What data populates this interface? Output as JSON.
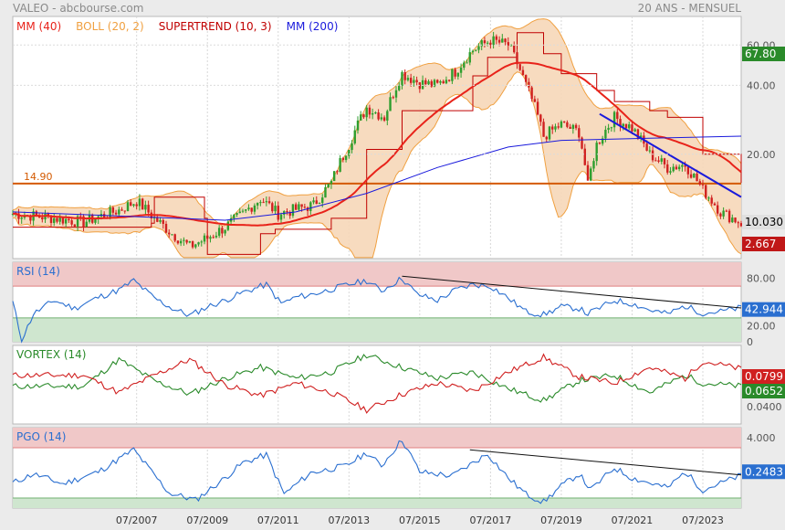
{
  "header": {
    "left": "VALEO - abcbourse.com",
    "right": "20 ANS - MENSUEL"
  },
  "colors": {
    "mm40": "#e8231a",
    "boll": "#f0a040",
    "boll_fill": "#f6d7b8",
    "supertrend": "#c00000",
    "mm200": "#1a1adc",
    "candle_up": "#2e9e2e",
    "candle_down": "#d02020",
    "price_badge": "#2a8a2a",
    "support": "#d45a00",
    "rsi_line": "#2a6fd0",
    "vortex_plus": "#2a8a2a",
    "vortex_minus": "#d02020",
    "overbought_zone": "#f0c8c8",
    "oversold_zone": "#cfe6cf"
  },
  "chart_data": [
    {
      "type": "candlestick",
      "panel": "price",
      "legend": [
        {
          "name": "MM (40)",
          "color": "#e8231a"
        },
        {
          "name": "BOLL (20, 2)",
          "color": "#f0a040"
        },
        {
          "name": "SUPERTREND (10, 3)",
          "color": "#c00000"
        },
        {
          "name": "MM (200)",
          "color": "#1a1adc"
        }
      ],
      "y_ticks": [
        "60.00",
        "40.00",
        "20.00"
      ],
      "x_ticks": [
        "07/2007",
        "07/2009",
        "07/2011",
        "07/2013",
        "07/2015",
        "07/2017",
        "07/2019",
        "07/2021",
        "07/2023"
      ],
      "x_range": [
        "2004-01",
        "2024-08"
      ],
      "yscale": "log",
      "ylim": [
        7,
        80
      ],
      "close_points": [
        [
          "2004-01",
          11.0
        ],
        [
          "2005-01",
          10.6
        ],
        [
          "2006-01",
          10.1
        ],
        [
          "2007-01",
          11.4
        ],
        [
          "2007-07",
          12.5
        ],
        [
          "2008-01",
          10.5
        ],
        [
          "2008-07",
          9.0
        ],
        [
          "2009-01",
          7.9
        ],
        [
          "2009-07",
          8.6
        ],
        [
          "2010-01",
          9.6
        ],
        [
          "2010-07",
          11.0
        ],
        [
          "2011-01",
          12.8
        ],
        [
          "2011-07",
          11.0
        ],
        [
          "2012-01",
          11.5
        ],
        [
          "2012-07",
          12.0
        ],
        [
          "2013-01",
          15.0
        ],
        [
          "2013-07",
          22.0
        ],
        [
          "2014-01",
          32.0
        ],
        [
          "2014-07",
          29.0
        ],
        [
          "2015-01",
          45.0
        ],
        [
          "2015-07",
          41.0
        ],
        [
          "2016-01",
          40.0
        ],
        [
          "2016-07",
          46.0
        ],
        [
          "2017-01",
          57.0
        ],
        [
          "2017-07",
          63.0
        ],
        [
          "2018-01",
          60.0
        ],
        [
          "2018-07",
          40.0
        ],
        [
          "2019-01",
          24.0
        ],
        [
          "2019-07",
          27.0
        ],
        [
          "2020-01",
          25.0
        ],
        [
          "2020-04",
          14.5
        ],
        [
          "2020-07",
          22.0
        ],
        [
          "2021-01",
          29.0
        ],
        [
          "2021-07",
          26.0
        ],
        [
          "2022-01",
          20.0
        ],
        [
          "2022-07",
          17.5
        ],
        [
          "2023-01",
          18.0
        ],
        [
          "2023-07",
          14.0
        ],
        [
          "2024-01",
          11.2
        ],
        [
          "2024-08",
          10.03
        ]
      ],
      "mm200": [
        [
          "2004-01",
          11.2
        ],
        [
          "2008-01",
          10.6
        ],
        [
          "2010-01",
          10.3
        ],
        [
          "2012-01",
          11.2
        ],
        [
          "2014-01",
          13.5
        ],
        [
          "2016-01",
          17.5
        ],
        [
          "2018-01",
          21.5
        ],
        [
          "2019-07",
          23.0
        ],
        [
          "2022-01",
          23.5
        ],
        [
          "2024-08",
          24.0
        ]
      ],
      "supertrend": [
        [
          "2004-01",
          9.6
        ],
        [
          "2007-12",
          10.0
        ],
        [
          "2008-01",
          13.0
        ],
        [
          "2009-06",
          10.5
        ],
        [
          "2009-07",
          7.3
        ],
        [
          "2011-01",
          9.0
        ],
        [
          "2011-06",
          9.4
        ],
        [
          "2013-01",
          10.5
        ],
        [
          "2014-01",
          21.0
        ],
        [
          "2015-01",
          31.0
        ],
        [
          "2017-01",
          44.0
        ],
        [
          "2017-06",
          53.0
        ],
        [
          "2018-03",
          53.0
        ],
        [
          "2018-04",
          68.0
        ],
        [
          "2019-01",
          55.0
        ],
        [
          "2019-07",
          45.0
        ],
        [
          "2020-07",
          38.0
        ],
        [
          "2021-01",
          34.0
        ],
        [
          "2022-01",
          31.0
        ],
        [
          "2022-07",
          29.0
        ],
        [
          "2023-07",
          20.0
        ],
        [
          "2024-08",
          15.0
        ]
      ],
      "support_line": {
        "value": 14.9,
        "label": "14.90"
      },
      "trendline": [
        [
          "2020-08",
          30.0
        ],
        [
          "2024-08",
          13.0
        ]
      ],
      "last_close": "10.030",
      "badges": [
        "67.80",
        "10.030",
        "2.667"
      ]
    },
    {
      "type": "line",
      "panel": "RSI",
      "title": "RSI (14)",
      "y_ticks": [
        "80.00",
        "20.00",
        "0"
      ],
      "ylim": [
        0,
        100
      ],
      "zones": {
        "overbought": 70,
        "oversold": 30
      },
      "points": [
        [
          "2004-01",
          50
        ],
        [
          "2004-04",
          2
        ],
        [
          "2004-08",
          35
        ],
        [
          "2005-03",
          52
        ],
        [
          "2005-10",
          42
        ],
        [
          "2006-06",
          56
        ],
        [
          "2007-01",
          65
        ],
        [
          "2007-06",
          77
        ],
        [
          "2008-01",
          55
        ],
        [
          "2008-07",
          42
        ],
        [
          "2009-01",
          33
        ],
        [
          "2009-07",
          44
        ],
        [
          "2010-01",
          52
        ],
        [
          "2010-07",
          62
        ],
        [
          "2011-03",
          72
        ],
        [
          "2011-08",
          48
        ],
        [
          "2012-01",
          56
        ],
        [
          "2012-07",
          60
        ],
        [
          "2013-01",
          66
        ],
        [
          "2013-07",
          72
        ],
        [
          "2014-01",
          77
        ],
        [
          "2014-06",
          64
        ],
        [
          "2015-01",
          80
        ],
        [
          "2015-06",
          60
        ],
        [
          "2016-01",
          52
        ],
        [
          "2016-07",
          65
        ],
        [
          "2017-01",
          72
        ],
        [
          "2017-07",
          70
        ],
        [
          "2018-01",
          55
        ],
        [
          "2018-07",
          38
        ],
        [
          "2019-01",
          34
        ],
        [
          "2019-07",
          44
        ],
        [
          "2020-01",
          42
        ],
        [
          "2020-04",
          35
        ],
        [
          "2021-01",
          52
        ],
        [
          "2021-07",
          48
        ],
        [
          "2022-01",
          40
        ],
        [
          "2022-07",
          35
        ],
        [
          "2023-01",
          45
        ],
        [
          "2023-07",
          36
        ],
        [
          "2024-01",
          38
        ],
        [
          "2024-08",
          42.9
        ]
      ],
      "trendline": [
        [
          "2015-01",
          82.5
        ],
        [
          "2024-08",
          42.5
        ]
      ],
      "last_value": "42.944"
    },
    {
      "type": "line",
      "panel": "VORTEX",
      "title": "VORTEX (14)",
      "y_ticks": [
        "0.0400"
      ],
      "ylim": [
        0,
        1
      ],
      "series": [
        {
          "color": "#2a8a2a",
          "points": [
            [
              "2004-01",
              0.48
            ],
            [
              "2006-01",
              0.48
            ],
            [
              "2007-01",
              0.82
            ],
            [
              "2008-01",
              0.55
            ],
            [
              "2009-01",
              0.38
            ],
            [
              "2010-01",
              0.58
            ],
            [
              "2011-01",
              0.72
            ],
            [
              "2012-01",
              0.58
            ],
            [
              "2013-01",
              0.66
            ],
            [
              "2014-01",
              0.88
            ],
            [
              "2015-01",
              0.72
            ],
            [
              "2016-01",
              0.58
            ],
            [
              "2017-01",
              0.66
            ],
            [
              "2018-01",
              0.45
            ],
            [
              "2019-01",
              0.3
            ],
            [
              "2020-01",
              0.55
            ],
            [
              "2021-01",
              0.62
            ],
            [
              "2022-01",
              0.4
            ],
            [
              "2023-01",
              0.62
            ],
            [
              "2023-07",
              0.52
            ],
            [
              "2024-08",
              0.48
            ]
          ]
        },
        {
          "color": "#d02020",
          "points": [
            [
              "2004-01",
              0.62
            ],
            [
              "2006-01",
              0.62
            ],
            [
              "2007-01",
              0.4
            ],
            [
              "2008-01",
              0.62
            ],
            [
              "2009-01",
              0.82
            ],
            [
              "2010-01",
              0.5
            ],
            [
              "2011-01",
              0.36
            ],
            [
              "2012-01",
              0.52
            ],
            [
              "2013-01",
              0.4
            ],
            [
              "2014-01",
              0.18
            ],
            [
              "2015-01",
              0.38
            ],
            [
              "2016-01",
              0.52
            ],
            [
              "2017-01",
              0.42
            ],
            [
              "2018-01",
              0.66
            ],
            [
              "2019-01",
              0.85
            ],
            [
              "2020-01",
              0.6
            ],
            [
              "2021-01",
              0.52
            ],
            [
              "2022-01",
              0.72
            ],
            [
              "2023-01",
              0.58
            ],
            [
              "2023-07",
              0.8
            ],
            [
              "2024-08",
              0.7
            ]
          ]
        }
      ],
      "last_values": [
        "0.0799",
        "0.0652"
      ]
    },
    {
      "type": "line",
      "panel": "PGO",
      "title": "PGO (14)",
      "y_ticks": [
        "4.000"
      ],
      "ylim": [
        -3,
        5
      ],
      "zones": {
        "overbought": 3,
        "oversold": -2
      },
      "points": [
        [
          "2004-01",
          -0.5
        ],
        [
          "2004-08",
          0.4
        ],
        [
          "2005-06",
          -0.6
        ],
        [
          "2006-06",
          0.6
        ],
        [
          "2007-06",
          2.8
        ],
        [
          "2008-06",
          -1.5
        ],
        [
          "2009-03",
          -2.2
        ],
        [
          "2010-01",
          0.0
        ],
        [
          "2010-07",
          1.5
        ],
        [
          "2011-03",
          2.3
        ],
        [
          "2011-09",
          -1.6
        ],
        [
          "2012-06",
          0.5
        ],
        [
          "2013-06",
          1.2
        ],
        [
          "2014-01",
          2.5
        ],
        [
          "2014-06",
          1.2
        ],
        [
          "2015-01",
          3.8
        ],
        [
          "2015-07",
          0.6
        ],
        [
          "2016-06",
          0.2
        ],
        [
          "2017-06",
          2.4
        ],
        [
          "2018-01",
          0.0
        ],
        [
          "2018-07",
          -1.6
        ],
        [
          "2019-01",
          -2.4
        ],
        [
          "2019-07",
          -0.8
        ],
        [
          "2020-01",
          0.4
        ],
        [
          "2020-05",
          -1.2
        ],
        [
          "2021-01",
          1.0
        ],
        [
          "2021-07",
          0.0
        ],
        [
          "2022-07",
          -1.0
        ],
        [
          "2023-01",
          0.6
        ],
        [
          "2023-07",
          -1.2
        ],
        [
          "2024-08",
          0.25
        ]
      ],
      "trendline": [
        [
          "2016-12",
          2.8
        ],
        [
          "2024-08",
          0.3
        ]
      ],
      "last_value": "0.2483"
    }
  ]
}
